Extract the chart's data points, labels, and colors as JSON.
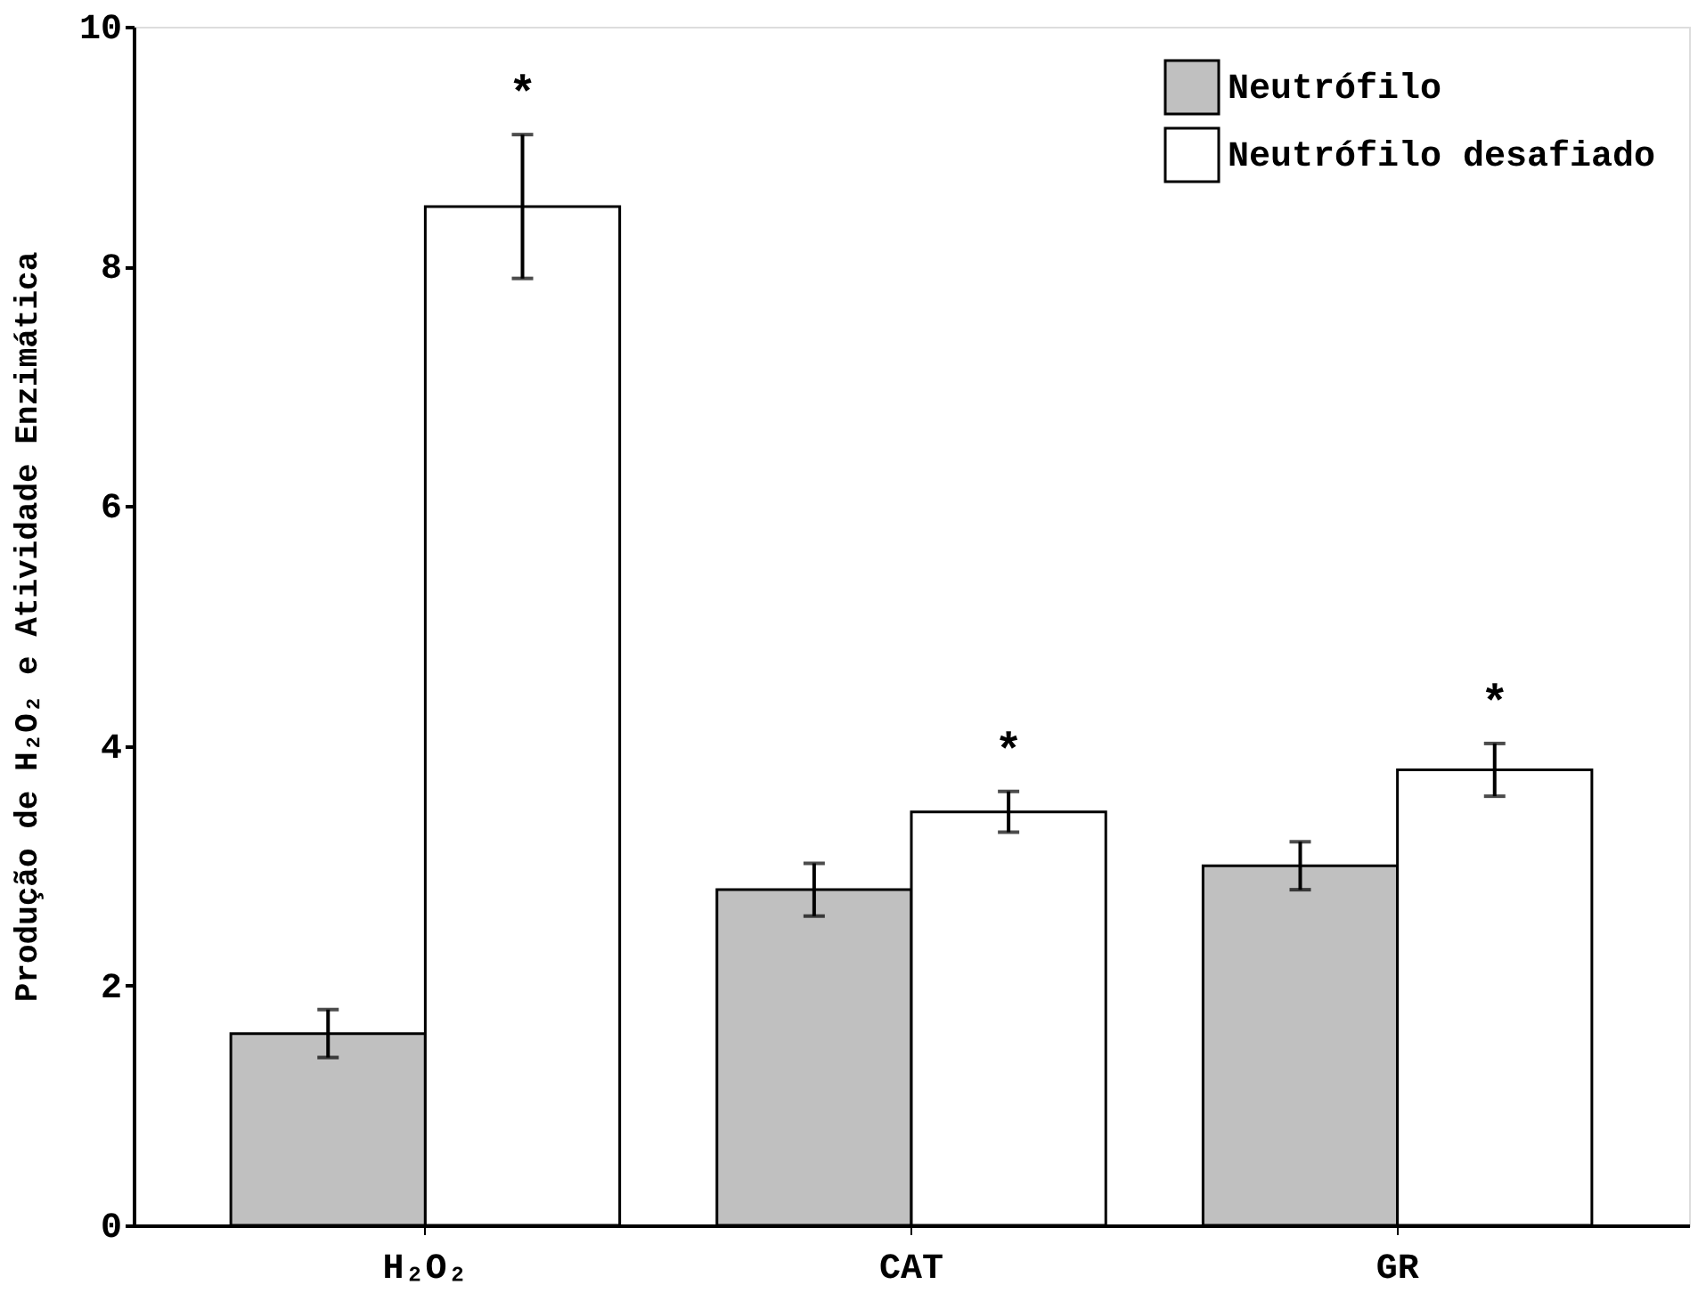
{
  "chart_data": {
    "type": "bar",
    "ylabel": "Produção de H₂O₂ e Atividade Enzimática",
    "categories": [
      "H₂O₂",
      "CAT",
      "GR"
    ],
    "series": [
      {
        "name": "Neutrófilo",
        "color": "#c0c0c0",
        "values": [
          1.6,
          2.8,
          3.0
        ],
        "errors": [
          0.2,
          0.22,
          0.2
        ]
      },
      {
        "name": "Neutrófilo desafiado",
        "color": "#ffffff",
        "values": [
          8.5,
          3.45,
          3.8
        ],
        "errors": [
          0.6,
          0.17,
          0.22
        ]
      }
    ],
    "ylim": [
      0,
      10
    ],
    "yticks": [
      0,
      2,
      4,
      6,
      8,
      10
    ],
    "grid": false,
    "legend": "top right",
    "annotations": [
      "*",
      "*",
      "*"
    ]
  }
}
